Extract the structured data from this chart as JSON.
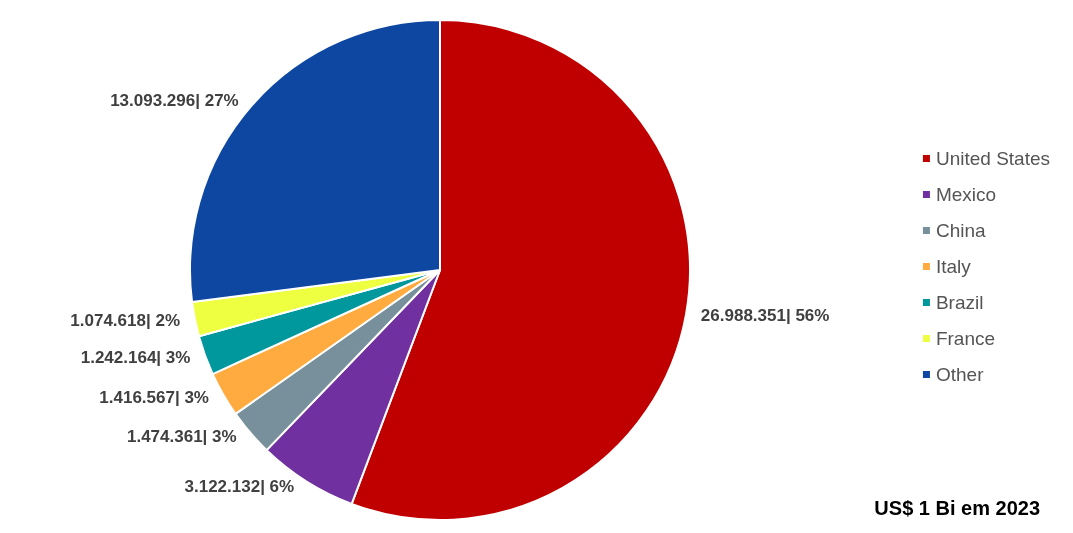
{
  "chart_data": {
    "type": "pie",
    "title": "US$ 1 Bi em 2023",
    "categories": [
      "United States",
      "Mexico",
      "China",
      "Italy",
      "Brazil",
      "France",
      "Other"
    ],
    "values": [
      26988351,
      3122132,
      1474361,
      1416567,
      1242164,
      1074618,
      13093296
    ],
    "value_labels": [
      "26.988.351| 56%",
      "3.122.132| 6%",
      "1.474.361| 3%",
      "1.416.567| 3%",
      "1.242.164| 3%",
      "1.074.618| 2%",
      "13.093.296| 27%"
    ],
    "colors": [
      "#c00000",
      "#7030a0",
      "#78909c",
      "#ffab40",
      "#00979d",
      "#eeff41",
      "#0d47a1"
    ],
    "legend": "right"
  }
}
